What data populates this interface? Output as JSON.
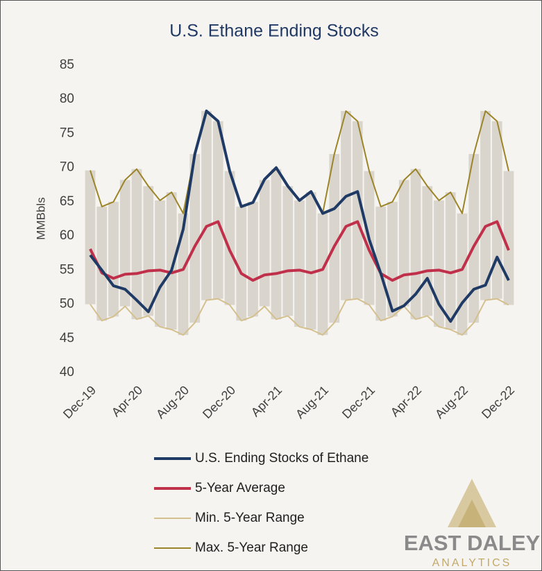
{
  "chart_data": {
    "type": "line",
    "title": "U.S. Ethane Ending Stocks",
    "y_label": "MMBbls",
    "categories": [
      "Dec-19",
      null,
      null,
      null,
      "Apr-20",
      null,
      null,
      null,
      "Aug-20",
      null,
      null,
      null,
      "Dec-20",
      null,
      null,
      null,
      "Apr-21",
      null,
      null,
      null,
      "Aug-21",
      null,
      null,
      null,
      "Dec-21",
      null,
      null,
      null,
      "Apr-22",
      null,
      null,
      null,
      "Aug-22",
      null,
      null,
      null,
      "Dec-22"
    ],
    "ylim": [
      40,
      85
    ],
    "yticks": [
      40,
      45,
      50,
      55,
      60,
      65,
      70,
      75,
      80,
      85
    ],
    "range_fill": "#d9d5cd",
    "series": [
      {
        "name": "U.S. Ending Stocks of Ethane",
        "color": "#1f3a64",
        "width": 4,
        "values": [
          57.2,
          55,
          52.7,
          52.2,
          50.6,
          48.9,
          52.5,
          55,
          61,
          72,
          78.3,
          76.8,
          69.5,
          64.3,
          64.9,
          68.3,
          70,
          67.3,
          65.2,
          66.5,
          63.3,
          64,
          65.8,
          66.5,
          59.5,
          54.5,
          49,
          49.8,
          51.5,
          53.8,
          50,
          47.5,
          50.2,
          52.2,
          52.8,
          56.9,
          53.5
        ]
      },
      {
        "name": "5-Year Average",
        "color": "#c0304a",
        "width": 4,
        "values": [
          58.1,
          54.6,
          53.8,
          54.4,
          54.5,
          54.9,
          55,
          54.6,
          55.1,
          58.5,
          61.4,
          62.1,
          57.9,
          54.5,
          53.5,
          54.3,
          54.5,
          54.9,
          55,
          54.6,
          55.1,
          58.5,
          61.4,
          62.1,
          57.9,
          54.5,
          53.5,
          54.3,
          54.5,
          54.9,
          55,
          54.6,
          55.1,
          58.5,
          61.4,
          62.1,
          57.9
        ]
      },
      {
        "name": "Min. 5-Year Range",
        "color": "#d4c08e",
        "width": 2,
        "values": [
          50,
          47.6,
          48.2,
          49.7,
          47.8,
          48.3,
          46.7,
          46.3,
          45.5,
          47.3,
          50.6,
          50.8,
          49.9,
          47.6,
          48.2,
          49.7,
          47.8,
          48.3,
          46.7,
          46.3,
          45.5,
          47.3,
          50.6,
          50.8,
          49.9,
          47.6,
          48.2,
          49.7,
          47.8,
          48.3,
          46.7,
          46.3,
          45.5,
          47.3,
          50.6,
          50.8,
          49.9
        ]
      },
      {
        "name": "Max. 5-Year Range",
        "color": "#9c8428",
        "width": 2,
        "values": [
          69.6,
          64.3,
          65,
          68.2,
          69.8,
          67.3,
          65.2,
          66.4,
          63.3,
          72,
          78.3,
          76.8,
          69.5,
          64.3,
          65,
          68.2,
          69.8,
          67.3,
          65.2,
          66.4,
          63.3,
          72,
          78.3,
          76.8,
          69.5,
          64.3,
          65,
          68.2,
          69.8,
          67.3,
          65.2,
          66.4,
          63.3,
          72,
          78.3,
          76.8,
          69.5
        ]
      }
    ]
  },
  "logo": {
    "name": "EAST DALEY",
    "tagline": "ANALYTICS"
  }
}
